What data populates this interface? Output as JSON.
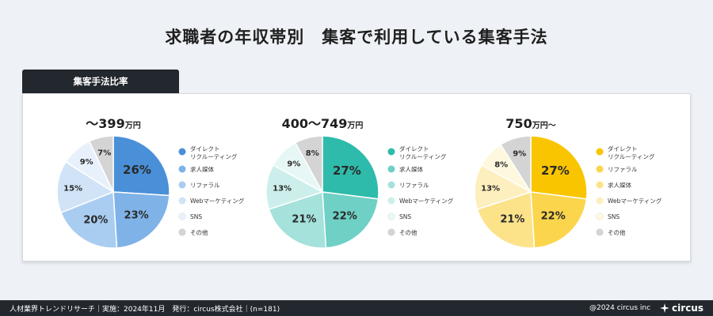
{
  "page": {
    "title": "求職者の年収帯別　集客で利用している集客手法",
    "tab_label": "集客手法比率"
  },
  "footer": {
    "left": "人材業界トレンドリサーチ｜実施：2024年11月　発行：circus株式会社｜(n=181)",
    "copyright": "@2024 circus inc",
    "brand": "circus"
  },
  "chart_data": [
    {
      "type": "pie",
      "title_main": "〜399",
      "title_unit": "万円",
      "categories": [
        "ダイレクト\nリクルーティング",
        "求人媒体",
        "リファラル",
        "Webマーケティング",
        "SNS",
        "その他"
      ],
      "values": [
        26,
        23,
        20,
        15,
        9,
        7
      ],
      "labels": [
        "26%",
        "23%",
        "20%",
        "15%",
        "9%",
        "7%"
      ],
      "colors": [
        "#4a90d9",
        "#7fb3e8",
        "#a9cdf1",
        "#d0e3f7",
        "#e8f1fb",
        "#d4d4d4"
      ],
      "legend": [
        "ダイレクト\nリクルーティング",
        "求人媒体",
        "リファラル",
        "Webマーケティング",
        "SNS",
        "その他"
      ]
    },
    {
      "type": "pie",
      "title_main": "400〜749",
      "title_unit": "万円",
      "values": [
        27,
        22,
        21,
        13,
        9,
        8
      ],
      "labels": [
        "27%",
        "22%",
        "21%",
        "13%",
        "9%",
        "8%"
      ],
      "colors": [
        "#2ebbab",
        "#6fd0c5",
        "#a4e2db",
        "#cdefeb",
        "#e6f7f5",
        "#d4d4d4"
      ],
      "legend": [
        "ダイレクト\nリクルーティング",
        "求人媒体",
        "リファラル",
        "Webマーケティング",
        "SNS",
        "その他"
      ]
    },
    {
      "type": "pie",
      "title_main": "750",
      "title_unit": "万円〜",
      "values": [
        27,
        22,
        21,
        13,
        8,
        9
      ],
      "labels": [
        "27%",
        "22%",
        "21%",
        "13%",
        "8%",
        "9%"
      ],
      "colors": [
        "#f9c500",
        "#fbd54c",
        "#fce38a",
        "#fdefbe",
        "#fef8df",
        "#d4d4d4"
      ],
      "legend": [
        "ダイレクト\nリクルーティング",
        "リファラル",
        "求人媒体",
        "Webマーケティング",
        "SNS",
        "その他"
      ]
    }
  ]
}
